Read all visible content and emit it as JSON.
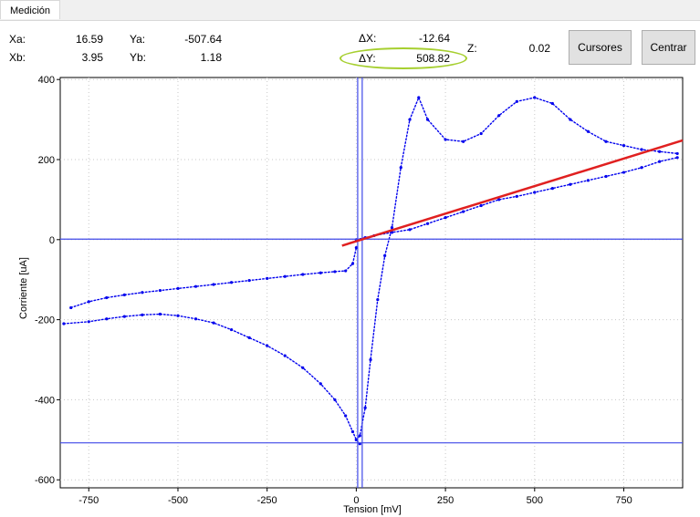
{
  "tab": {
    "label": "Medición"
  },
  "readouts": {
    "xa_label": "Xa:",
    "xa_value": "16.59",
    "xb_label": "Xb:",
    "xb_value": "3.95",
    "ya_label": "Ya:",
    "ya_value": "-507.64",
    "yb_label": "Yb:",
    "yb_value": "1.18",
    "dx_label": "ΔX:",
    "dx_value": "-12.64",
    "dy_label": "ΔY:",
    "dy_value": "508.82",
    "z_label": "Z:",
    "z_value": "0.02"
  },
  "buttons": {
    "cursores": "Cursores",
    "centrar": "Centrar"
  },
  "colors": {
    "data": "#0000ee",
    "cursor": "#3f48e8",
    "fit_line": "#e02020",
    "highlight": "#a6cf2f"
  },
  "chart_data": {
    "type": "scatter",
    "xlabel": "Tension [mV]",
    "ylabel": "Corriente [uA]",
    "xlim": [
      -830,
      915
    ],
    "ylim": [
      -620,
      405
    ],
    "xticks": [
      -750,
      -500,
      -250,
      0,
      250,
      500,
      750
    ],
    "yticks": [
      -600,
      -400,
      -200,
      0,
      200,
      400
    ],
    "grid": true,
    "cursors": {
      "x": [
        3.95,
        16.59
      ],
      "y": [
        1.18,
        -507.64
      ]
    },
    "fit_line": {
      "x": [
        -40,
        915
      ],
      "y": [
        -15,
        248
      ]
    },
    "series": [
      {
        "x": [
          -800,
          -750,
          -700,
          -650,
          -600,
          -550,
          -500,
          -450,
          -400,
          -350,
          -300,
          -250,
          -200,
          -150,
          -100,
          -60,
          -30,
          -10,
          0
        ],
        "y": [
          -170,
          -155,
          -145,
          -138,
          -132,
          -127,
          -122,
          -117,
          -112,
          -107,
          -102,
          -97,
          -92,
          -87,
          -83,
          -80,
          -78,
          -60,
          -20
        ]
      },
      {
        "x": [
          -820,
          -750,
          -700,
          -650,
          -600,
          -550,
          -500,
          -450,
          -400,
          -350,
          -300,
          -250,
          -200,
          -150,
          -100,
          -60,
          -30,
          -10,
          0,
          10
        ],
        "y": [
          -210,
          -205,
          -198,
          -192,
          -188,
          -186,
          -190,
          -198,
          -208,
          -225,
          -245,
          -265,
          -290,
          -320,
          -360,
          -400,
          -440,
          -480,
          -500,
          -510
        ]
      },
      {
        "x": [
          0,
          10,
          25,
          40,
          60,
          80,
          100,
          125,
          150,
          175,
          200,
          250,
          300,
          350,
          400,
          450,
          500,
          550,
          600,
          650,
          700,
          750,
          800,
          850,
          900
        ],
        "y": [
          -500,
          -490,
          -420,
          -300,
          -150,
          -40,
          30,
          180,
          300,
          355,
          300,
          250,
          245,
          265,
          310,
          345,
          355,
          340,
          300,
          270,
          245,
          235,
          225,
          220,
          215
        ]
      },
      {
        "x": [
          0,
          25,
          50,
          100,
          150,
          200,
          250,
          300,
          350,
          400,
          450,
          500,
          550,
          600,
          650,
          700,
          750,
          800,
          850,
          900
        ],
        "y": [
          0,
          5,
          10,
          18,
          25,
          40,
          55,
          70,
          85,
          100,
          108,
          118,
          128,
          138,
          148,
          158,
          168,
          180,
          195,
          205
        ]
      }
    ]
  }
}
